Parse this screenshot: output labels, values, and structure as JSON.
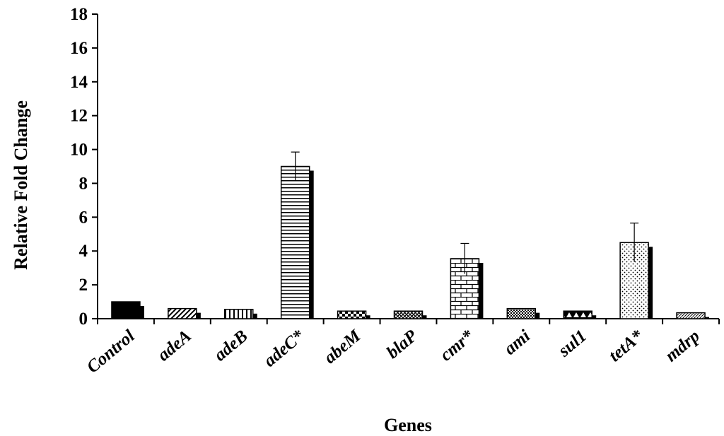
{
  "chart_data": {
    "type": "bar",
    "title": "",
    "xlabel": "Genes",
    "ylabel": "Relative Fold Change",
    "ylim": [
      0,
      18
    ],
    "yticks": [
      "0",
      "2",
      "4",
      "6",
      "8",
      "10",
      "12",
      "14",
      "16",
      "18"
    ],
    "categories": [
      "Control",
      "adeA",
      "adeB",
      "adeC*",
      "abeM",
      "blaP",
      "cmr*",
      "ami",
      "sul1",
      "tetA*",
      "mdrp"
    ],
    "values": [
      1.0,
      0.6,
      0.55,
      9.0,
      0.45,
      0.45,
      3.55,
      0.6,
      0.45,
      4.5,
      0.35
    ],
    "error_upper": [
      0,
      0,
      0,
      0.85,
      0,
      0,
      0.9,
      0,
      0,
      1.15,
      0
    ],
    "fill_patterns": [
      "solid",
      "diagonal",
      "vertical",
      "horizontal",
      "checker",
      "crosshatch",
      "brick",
      "small-checker",
      "triangles",
      "dots",
      "fine-diagonal"
    ],
    "bar_color": "#000000",
    "grid": false,
    "legend": "none"
  }
}
